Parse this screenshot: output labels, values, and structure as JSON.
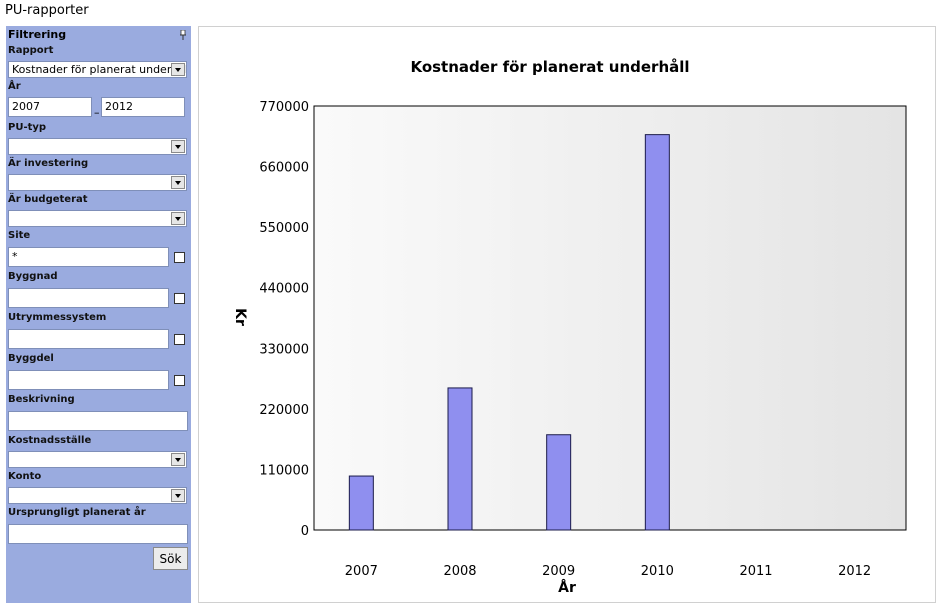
{
  "page": {
    "title": "PU-rapporter"
  },
  "sidebar": {
    "header": "Filtrering",
    "pin_icon": "pin-icon",
    "fields": {
      "rapport": {
        "label": "Rapport",
        "value": "Kostnader för planerat underhåll"
      },
      "ar": {
        "label": "År",
        "from": "2007",
        "to": "2012"
      },
      "pu_typ": {
        "label": "PU-typ",
        "value": ""
      },
      "ar_investering": {
        "label": "Är investering",
        "value": ""
      },
      "ar_budgeterat": {
        "label": "Är budgeterat",
        "value": ""
      },
      "site": {
        "label": "Site",
        "value": "*"
      },
      "byggnad": {
        "label": "Byggnad",
        "value": ""
      },
      "utrymmessystem": {
        "label": "Utrymmessystem",
        "value": ""
      },
      "byggdel": {
        "label": "Byggdel",
        "value": ""
      },
      "beskrivning": {
        "label": "Beskrivning",
        "value": ""
      },
      "kostnadsstalle": {
        "label": "Kostnadsställe",
        "value": ""
      },
      "konto": {
        "label": "Konto",
        "value": ""
      },
      "ursprungligt": {
        "label": "Ursprungligt planerat år",
        "value": ""
      }
    },
    "search_button": "Sök"
  },
  "chart_data": {
    "type": "bar",
    "title": "Kostnader för planerat underhåll",
    "xlabel": "År",
    "ylabel": "Kr",
    "categories": [
      "2007",
      "2008",
      "2009",
      "2010",
      "2011",
      "2012"
    ],
    "values": [
      98000,
      258000,
      173000,
      718000,
      0,
      0
    ],
    "ylim": [
      0,
      770000
    ],
    "yticks": [
      "0",
      "110000",
      "220000",
      "330000",
      "440000",
      "550000",
      "660000",
      "770000"
    ],
    "grid": false,
    "colors": {
      "bar_fill": "#8f8fef",
      "bar_stroke": "#1a1a4a",
      "plot_bg": "#f4f4f4"
    }
  }
}
